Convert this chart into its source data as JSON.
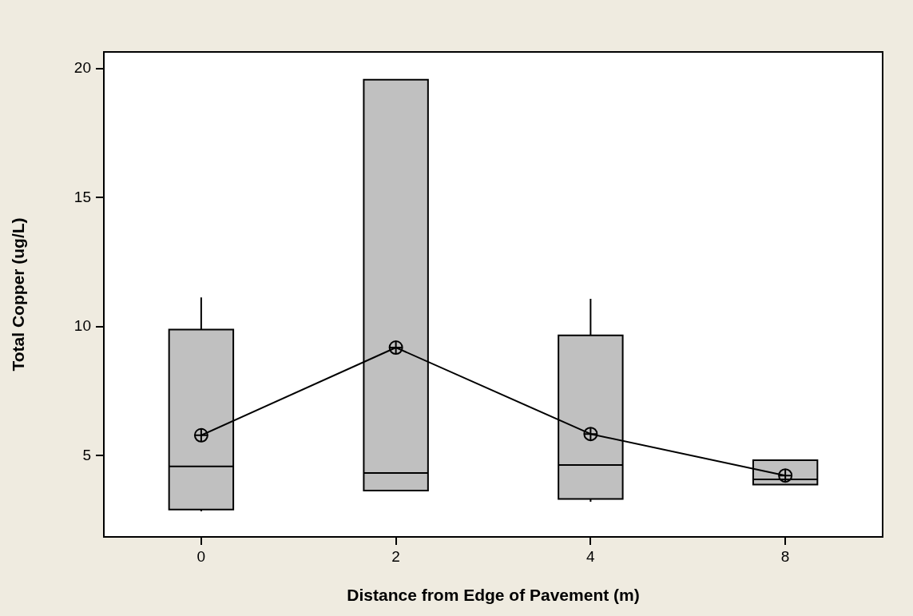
{
  "chart_data": {
    "type": "box",
    "xlabel": "Distance from Edge of Pavement (m)",
    "ylabel": "Total Copper (ug/L)",
    "categories": [
      "0",
      "2",
      "4",
      "8"
    ],
    "ylim": [
      1.85,
      20.65
    ],
    "yticks": [
      5,
      10,
      15,
      20
    ],
    "grid": false,
    "legend": false,
    "series": [
      {
        "color": "#c0c0c0",
        "boxes": [
          {
            "low": 2.84,
            "q1": 2.91,
            "median": 4.58,
            "q3": 9.89,
            "high": 11.13,
            "mean": 5.79
          },
          {
            "low": 3.65,
            "q1": 3.65,
            "median": 4.33,
            "q3": 19.57,
            "high": 19.57,
            "mean": 9.19
          },
          {
            "low": 3.21,
            "q1": 3.32,
            "median": 4.64,
            "q3": 9.66,
            "high": 11.08,
            "mean": 5.84
          },
          {
            "low": 3.88,
            "q1": 3.88,
            "median": 4.08,
            "q3": 4.82,
            "high": 4.82,
            "mean": 4.23
          }
        ]
      },
      {
        "type": "line",
        "color": "#000000",
        "values": [
          5.79,
          9.19,
          5.84,
          4.23
        ],
        "marker": "none"
      }
    ]
  }
}
